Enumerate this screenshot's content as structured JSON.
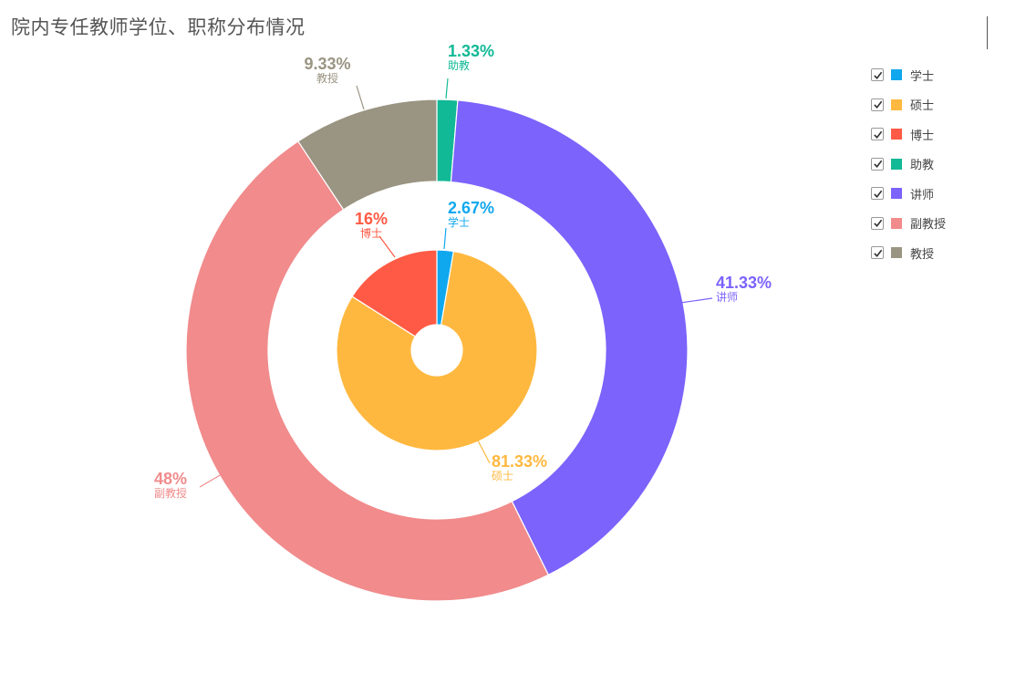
{
  "title": "院内专任教师学位、职称分布情况",
  "legend": [
    {
      "label": "学士",
      "color": "#0fa8ef"
    },
    {
      "label": "硕士",
      "color": "#ffb83f"
    },
    {
      "label": "博士",
      "color": "#ff5a45"
    },
    {
      "label": "助教",
      "color": "#12b996"
    },
    {
      "label": "讲师",
      "color": "#7b63fc"
    },
    {
      "label": "副教授",
      "color": "#f18b8c"
    },
    {
      "label": "教授",
      "color": "#9a9482"
    }
  ],
  "chart_data": [
    {
      "type": "pie",
      "title": "",
      "ring": "inner",
      "categories": [
        "学士",
        "硕士",
        "博士"
      ],
      "values": [
        2.67,
        81.33,
        16
      ],
      "labels": [
        "2.67%",
        "81.33%",
        "16%"
      ],
      "colors": [
        "#0fa8ef",
        "#ffb83f",
        "#ff5a45"
      ]
    },
    {
      "type": "pie",
      "title": "",
      "ring": "outer",
      "categories": [
        "助教",
        "讲师",
        "副教授",
        "教授"
      ],
      "values": [
        1.33,
        41.33,
        48,
        9.33
      ],
      "labels": [
        "1.33%",
        "41.33%",
        "48%",
        "9.33%"
      ],
      "colors": [
        "#12b996",
        "#7b63fc",
        "#f18b8c",
        "#9a9482"
      ]
    }
  ]
}
